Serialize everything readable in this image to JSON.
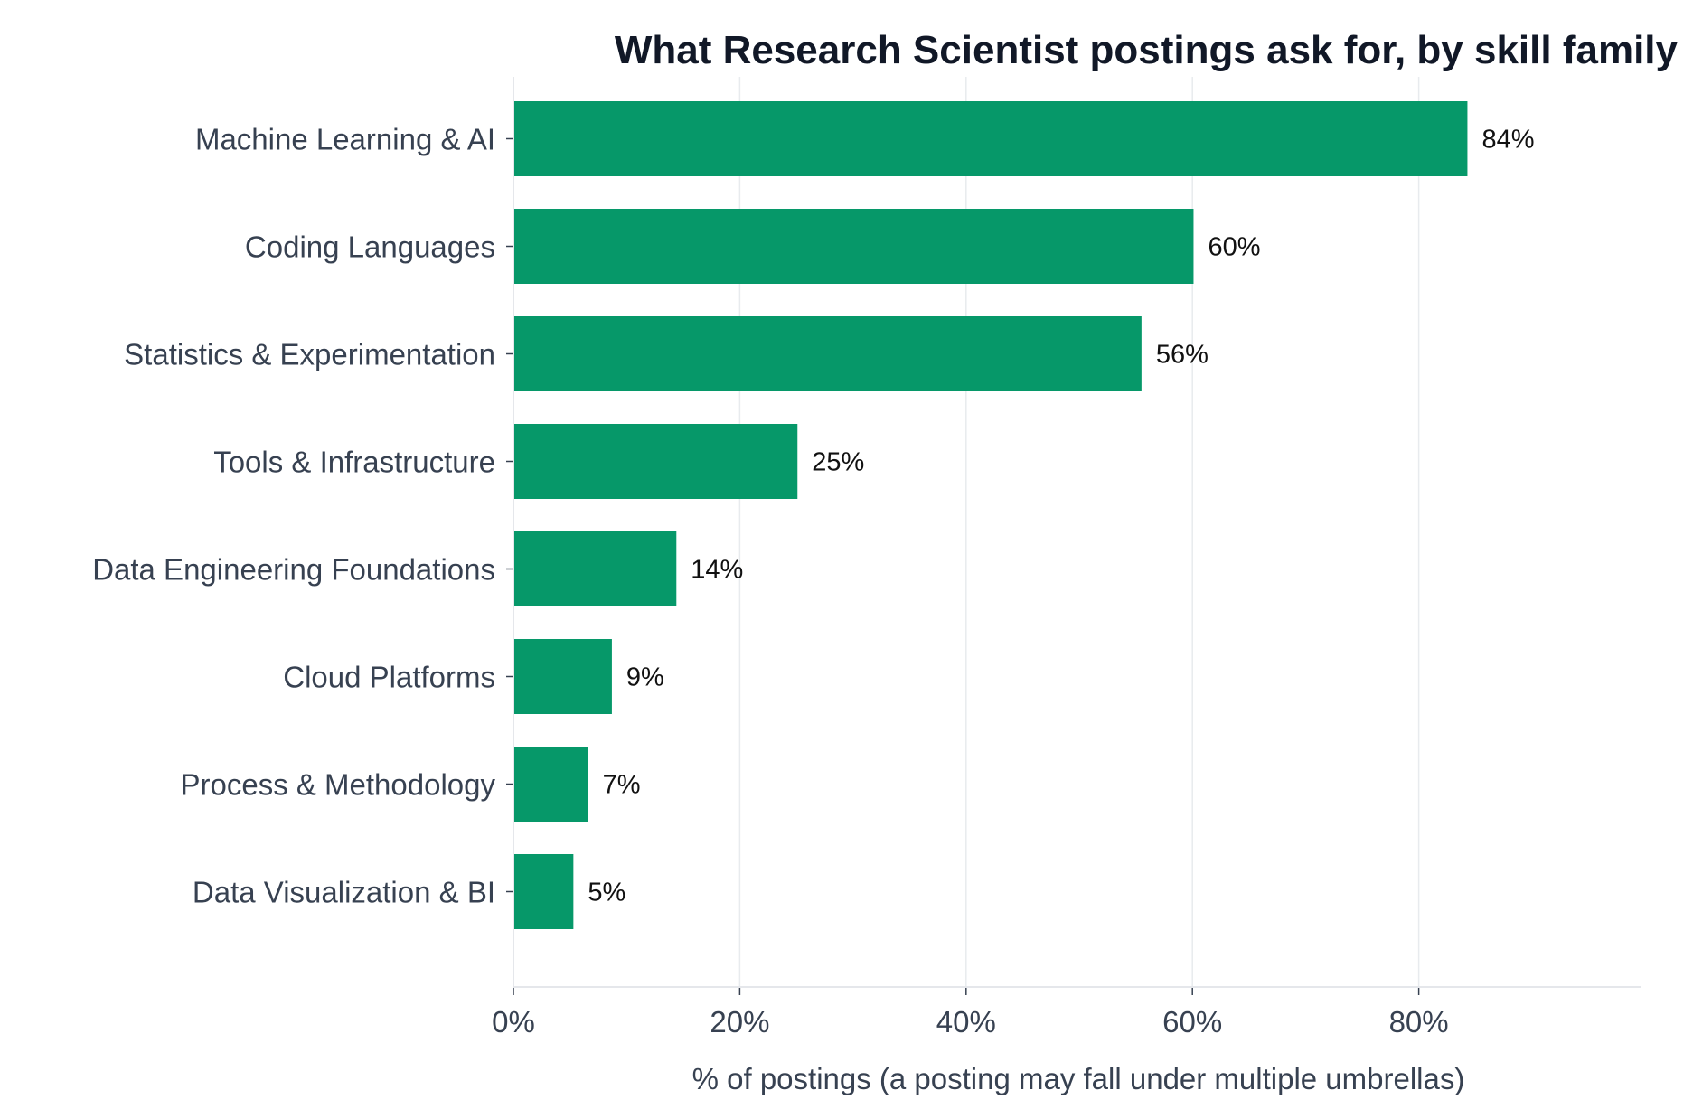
{
  "chart_data": {
    "type": "bar",
    "orientation": "horizontal",
    "title": "What Research Scientist postings ask for, by skill family",
    "xlabel": "% of postings (a posting may fall under multiple umbrellas)",
    "ylabel": "",
    "categories": [
      "Machine Learning & AI",
      "Coding Languages",
      "Statistics & Experimentation",
      "Tools & Infrastructure",
      "Data Engineering Foundations",
      "Cloud Platforms",
      "Process & Methodology",
      "Data Visualization & BI"
    ],
    "values": [
      84.3,
      60.1,
      55.5,
      25.1,
      14.4,
      8.7,
      6.6,
      5.3
    ],
    "data_labels": [
      "84%",
      "60%",
      "56%",
      "25%",
      "14%",
      "9%",
      "7%",
      "5%"
    ],
    "xlim": [
      0,
      99.6
    ],
    "xticks": [
      0,
      20,
      40,
      60,
      80
    ],
    "xtick_labels": [
      "0%",
      "20%",
      "40%",
      "60%",
      "80%"
    ],
    "grid": "vertical",
    "bar_color": "#069869",
    "grid_color": "#e8ebee",
    "axis_color": "#e5e7eb"
  }
}
